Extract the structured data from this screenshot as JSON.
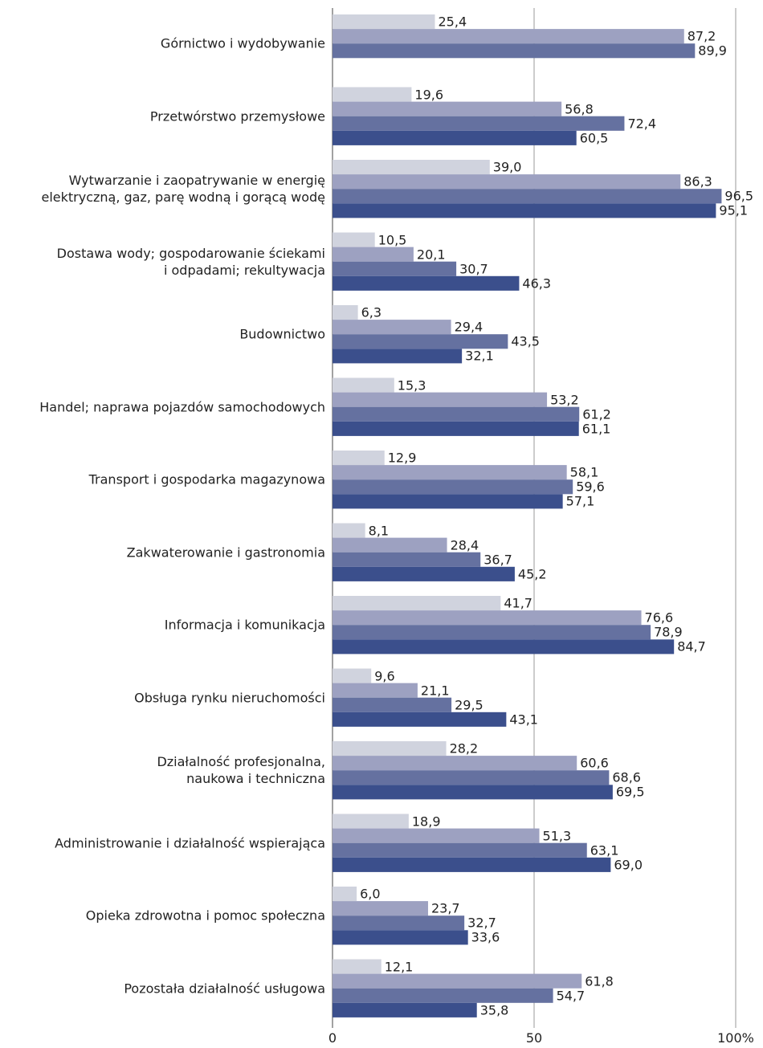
{
  "chart_data": {
    "type": "barh",
    "categories": [
      "Górnictwo i wydobywanie",
      "Przetwórstwo przemysłowe",
      "Wytwarzanie i zaopatrywanie w energię\nelektryczną, gaz, parę wodną i gorącą wodę",
      "Dostawa wody; gospodarowanie ściekami\ni odpadami; rekultywacja",
      "Budownictwo",
      "Handel; naprawa pojazdów samochodowych",
      "Transport i gospodarka magazynowa",
      "Zakwaterowanie i gastronomia",
      "Informacja i komunikacja",
      "Obsługa rynku nieruchomości",
      "Działalność profesjonalna,\nnaukowa i techniczna",
      "Administrowanie i działalność wspierająca",
      "Opieka zdrowotna i pomoc społeczna",
      "Pozostała działalność usługowa"
    ],
    "series": [
      {
        "color": "#d0d3de",
        "values": [
          25.4,
          19.6,
          39.0,
          10.5,
          6.3,
          15.3,
          12.9,
          8.1,
          41.7,
          9.6,
          28.2,
          18.9,
          6.0,
          12.1
        ],
        "value_labels": [
          "25,4",
          "19,6",
          "39,0",
          "10,5",
          "6,3",
          "15,3",
          "12,9",
          "8,1",
          "41,7",
          "9,6",
          "28,2",
          "18,9",
          "6,0",
          "12,1"
        ]
      },
      {
        "color": "#9da1c1",
        "values": [
          87.2,
          56.8,
          86.3,
          20.1,
          29.4,
          53.2,
          58.1,
          28.4,
          76.6,
          21.1,
          60.6,
          51.3,
          23.7,
          61.8
        ],
        "value_labels": [
          "87,2",
          "56,8",
          "86,3",
          "20,1",
          "29,4",
          "53,2",
          "58,1",
          "28,4",
          "76,6",
          "21,1",
          "60,6",
          "51,3",
          "23,7",
          "61,8"
        ]
      },
      {
        "color": "#6571a0",
        "values": [
          89.9,
          72.4,
          96.5,
          30.7,
          43.5,
          61.2,
          59.6,
          36.7,
          78.9,
          29.5,
          68.6,
          63.1,
          32.7,
          54.7
        ],
        "value_labels": [
          "89,9",
          "72,4",
          "96,5",
          "30,7",
          "43,5",
          "61,2",
          "59,6",
          "36,7",
          "78,9",
          "29,5",
          "68,6",
          "63,1",
          "32,7",
          "54,7"
        ]
      },
      {
        "color": "#3b4f8c",
        "values": [
          null,
          60.5,
          95.1,
          46.3,
          32.1,
          61.1,
          57.1,
          45.2,
          84.7,
          43.1,
          69.5,
          69.0,
          33.6,
          35.8
        ],
        "value_labels": [
          null,
          "60,5",
          "95,1",
          "46,3",
          "32,1",
          "61,1",
          "57,1",
          "45,2",
          "84,7",
          "43,1",
          "69,5",
          "69,0",
          "33,6",
          "35,8"
        ]
      }
    ],
    "xlim": [
      0,
      100
    ],
    "xticks": [
      0,
      50,
      {
        "value": 100,
        "label": "100%"
      }
    ],
    "grid": true
  }
}
